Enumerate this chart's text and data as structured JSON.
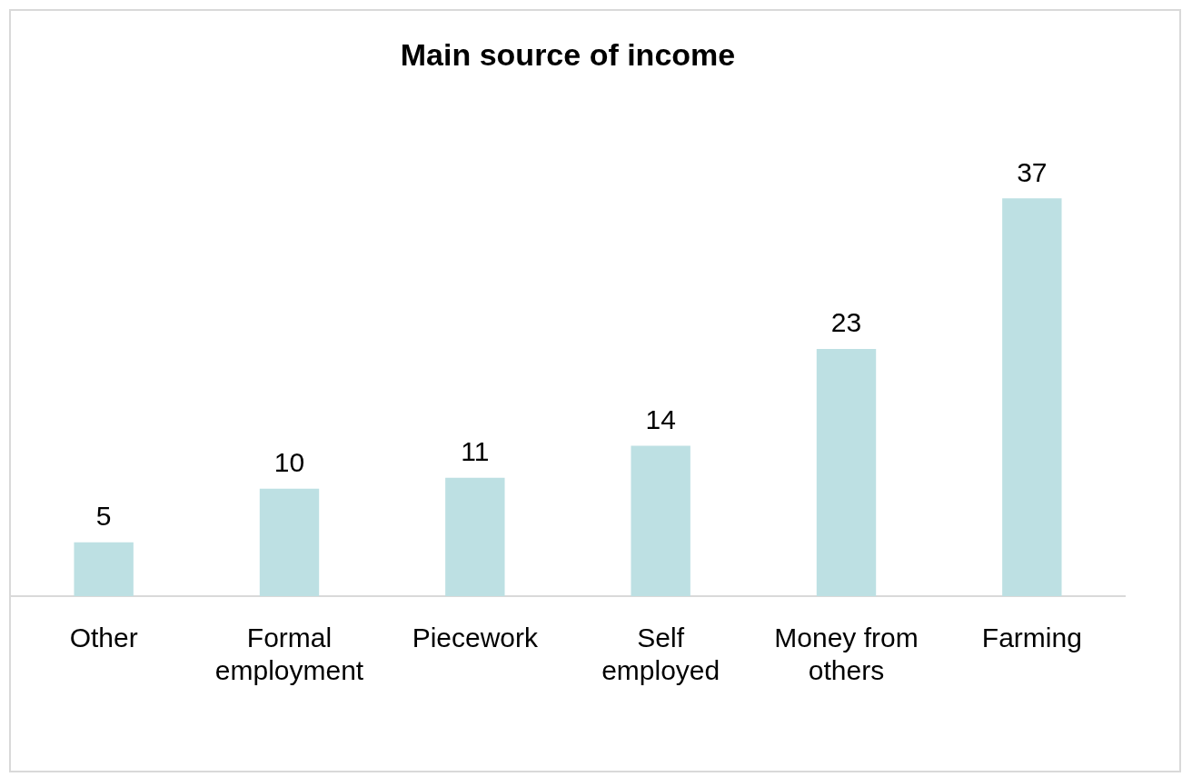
{
  "chart_data": {
    "type": "bar",
    "title": "Main source of income",
    "categories": [
      "Other",
      "Formal employment",
      "Piecework",
      "Self employed",
      "Money from others",
      "Farming"
    ],
    "values": [
      5,
      10,
      11,
      14,
      23,
      37
    ],
    "color": "#bde0e3",
    "data_labels": true,
    "grid": false,
    "legend": false,
    "tick_labels": "x"
  }
}
